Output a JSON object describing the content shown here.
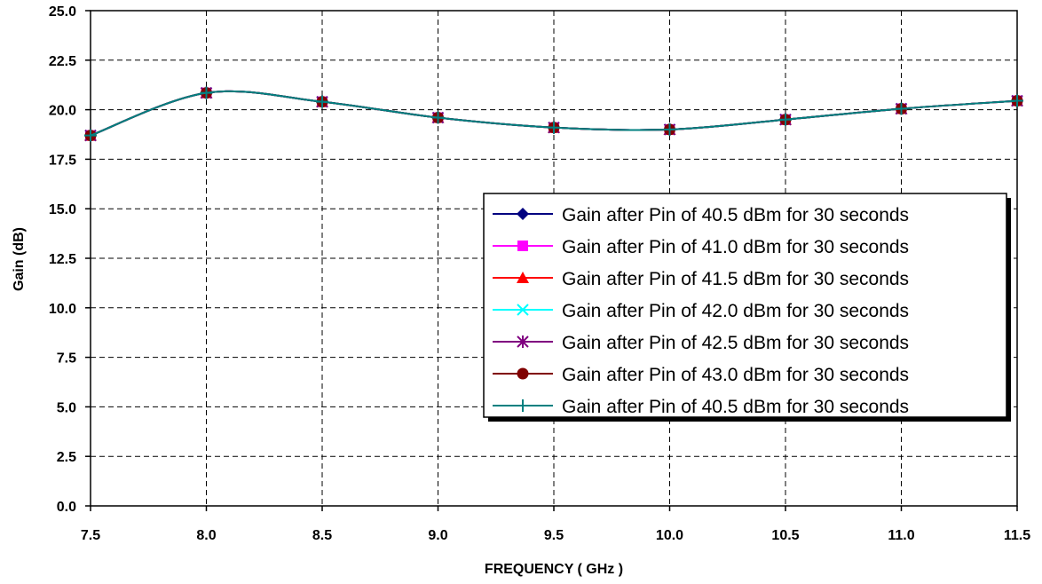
{
  "chart_data": {
    "type": "line",
    "title": "",
    "xlabel": "FREQUENCY ( GHz )",
    "ylabel": "Gain (dB)",
    "xlim": [
      7.5,
      11.5
    ],
    "ylim": [
      0.0,
      25.0
    ],
    "x_ticks": [
      "7.5",
      "8.0",
      "8.5",
      "9.0",
      "9.5",
      "10.0",
      "10.5",
      "11.0",
      "11.5"
    ],
    "y_ticks": [
      "0.0",
      "2.5",
      "5.0",
      "7.5",
      "10.0",
      "12.5",
      "15.0",
      "17.5",
      "20.0",
      "22.5",
      "25.0"
    ],
    "grid": true,
    "grid_style": "dashed",
    "smooth": true,
    "legend_position": "center-right",
    "x": [
      7.5,
      8.0,
      8.5,
      9.0,
      9.5,
      10.0,
      10.5,
      11.0,
      11.5
    ],
    "series": [
      {
        "name": "Gain after Pin of 40.5 dBm for 30 seconds",
        "color": "#000080",
        "marker": "diamond",
        "values": [
          18.7,
          20.85,
          20.4,
          19.6,
          19.1,
          19.0,
          19.5,
          20.05,
          20.45
        ]
      },
      {
        "name": "Gain after Pin of 41.0 dBm for 30 seconds",
        "color": "#FF00FF",
        "marker": "square",
        "values": [
          18.7,
          20.85,
          20.4,
          19.6,
          19.1,
          19.0,
          19.5,
          20.05,
          20.45
        ]
      },
      {
        "name": "Gain after Pin of 41.5 dBm for 30 seconds",
        "color": "#FF0000",
        "marker": "triangle",
        "values": [
          18.7,
          20.85,
          20.4,
          19.6,
          19.1,
          19.0,
          19.5,
          20.05,
          20.45
        ]
      },
      {
        "name": "Gain after Pin of 42.0 dBm for 30 seconds",
        "color": "#00FFFF",
        "marker": "x",
        "values": [
          18.7,
          20.85,
          20.4,
          19.6,
          19.1,
          19.0,
          19.5,
          20.05,
          20.45
        ]
      },
      {
        "name": "Gain after Pin of 42.5 dBm for 30 seconds",
        "color": "#800080",
        "marker": "star",
        "values": [
          18.7,
          20.85,
          20.4,
          19.6,
          19.1,
          19.0,
          19.5,
          20.05,
          20.45
        ]
      },
      {
        "name": "Gain after Pin of 43.0 dBm for 30 seconds",
        "color": "#800000",
        "marker": "circle",
        "values": [
          18.7,
          20.85,
          20.4,
          19.6,
          19.1,
          19.0,
          19.5,
          20.05,
          20.45
        ]
      },
      {
        "name": "Gain after Pin of 40.5 dBm for 30 seconds",
        "color": "#008080",
        "marker": "plus",
        "values": [
          18.7,
          20.85,
          20.4,
          19.6,
          19.1,
          19.0,
          19.5,
          20.05,
          20.45
        ]
      }
    ]
  }
}
